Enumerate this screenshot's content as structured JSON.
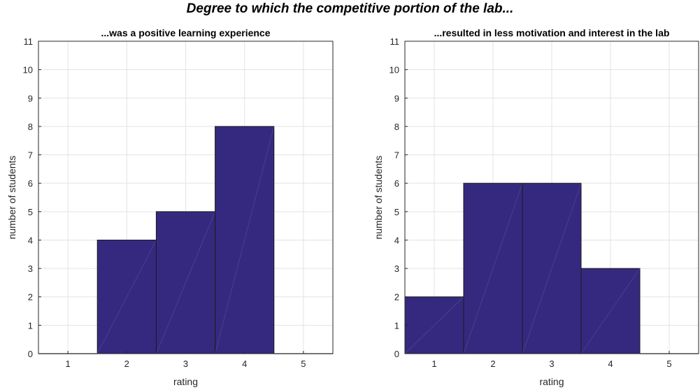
{
  "figure": {
    "suptitle": "Degree to which the competitive portion of the lab...",
    "colors": {
      "bar_fill": "#35297f",
      "bar_edge": "#1a1a1a",
      "grid": "#e3e3e3",
      "axis": "#262626"
    }
  },
  "chart_data": [
    {
      "type": "bar",
      "title": "...was a positive learning experience",
      "xlabel": "rating",
      "ylabel": "number of students",
      "categories": [
        "1",
        "2",
        "3",
        "4",
        "5"
      ],
      "x": [
        1,
        2,
        3,
        4,
        5
      ],
      "values": [
        0,
        4,
        5,
        8,
        0
      ],
      "xlim": [
        0.5,
        5.5
      ],
      "ylim": [
        0,
        11
      ],
      "yticks": [
        0,
        1,
        2,
        3,
        4,
        5,
        6,
        7,
        8,
        9,
        10,
        11
      ],
      "grid": true,
      "bar_width": 1
    },
    {
      "type": "bar",
      "title": "...resulted in less motivation and interest in the lab",
      "xlabel": "rating",
      "ylabel": "number of students",
      "categories": [
        "1",
        "2",
        "3",
        "4",
        "5"
      ],
      "x": [
        1,
        2,
        3,
        4,
        5
      ],
      "values": [
        2,
        6,
        6,
        3,
        0
      ],
      "xlim": [
        0.5,
        5.5
      ],
      "ylim": [
        0,
        11
      ],
      "yticks": [
        0,
        1,
        2,
        3,
        4,
        5,
        6,
        7,
        8,
        9,
        10,
        11
      ],
      "grid": true,
      "bar_width": 1
    }
  ]
}
